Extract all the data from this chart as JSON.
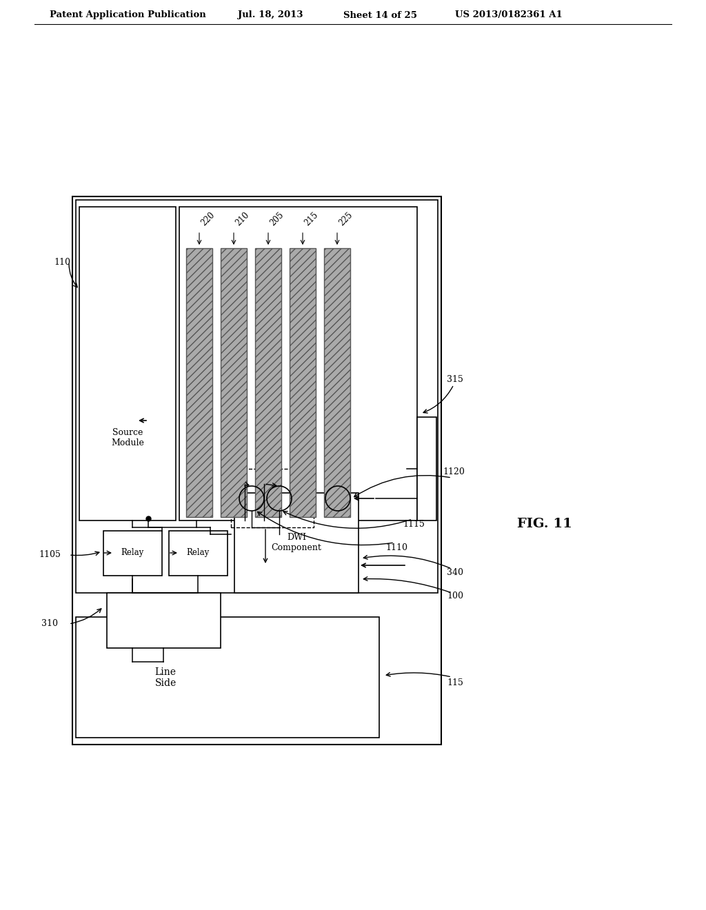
{
  "bg_color": "#ffffff",
  "header_text": "Patent Application Publication",
  "header_date": "Jul. 18, 2013",
  "header_sheet": "Sheet 14 of 25",
  "header_patent": "US 2013/0182361 A1",
  "fig_label": "FIG. 11"
}
